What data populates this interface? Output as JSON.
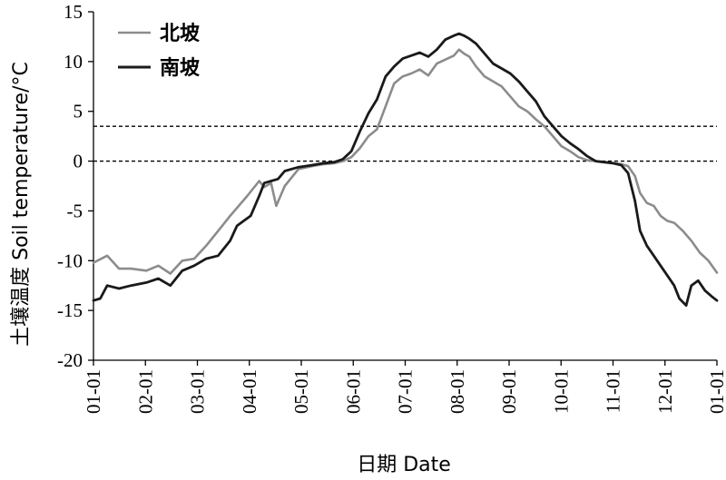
{
  "chart_data": {
    "type": "line",
    "xlabel": "日期 Date",
    "ylabel": "土壤温度 Soil temperature/°C",
    "ylim": [
      -20,
      15
    ],
    "yticks": [
      "15",
      "10",
      "5",
      "0",
      "-5",
      "-10",
      "-15",
      "-20"
    ],
    "xticks": [
      "01-01",
      "02-01",
      "03-01",
      "04-01",
      "05-01",
      "06-01",
      "07-01",
      "08-01",
      "09-01",
      "10-01",
      "11-01",
      "12-01",
      "01-01"
    ],
    "xlim": [
      0,
      365
    ],
    "reference_lines": [
      3.5,
      0
    ],
    "legend_position": "top-left",
    "series": [
      {
        "name": "北坡",
        "color": "#8c8c8c",
        "x": [
          0,
          8,
          15,
          22,
          31,
          38,
          45,
          52,
          59,
          66,
          73,
          80,
          90,
          97,
          100,
          104,
          107,
          112,
          120,
          128,
          135,
          141,
          146,
          151,
          156,
          161,
          166,
          171,
          176,
          181,
          186,
          191,
          196,
          201,
          206,
          211,
          214,
          217,
          220,
          224,
          229,
          234,
          239,
          244,
          249,
          254,
          259,
          264,
          269,
          274,
          279,
          284,
          289,
          294,
          299,
          304,
          309,
          313,
          317,
          320,
          324,
          328,
          332,
          336,
          340,
          345,
          350,
          355,
          360,
          365
        ],
        "y": [
          -10.2,
          -9.5,
          -10.8,
          -10.8,
          -11.0,
          -10.5,
          -11.3,
          -10.0,
          -9.8,
          -8.5,
          -7.0,
          -5.5,
          -3.5,
          -2.0,
          -2.6,
          -2.2,
          -4.5,
          -2.5,
          -0.8,
          -0.5,
          -0.3,
          -0.2,
          0.0,
          0.4,
          1.3,
          2.5,
          3.2,
          5.5,
          7.8,
          8.5,
          8.8,
          9.2,
          8.6,
          9.8,
          10.2,
          10.6,
          11.2,
          10.8,
          10.5,
          9.5,
          8.5,
          8.0,
          7.5,
          6.5,
          5.5,
          5.0,
          4.2,
          3.5,
          2.5,
          1.5,
          1.0,
          0.4,
          0.1,
          0.0,
          -0.1,
          -0.2,
          -0.3,
          -0.5,
          -1.5,
          -3.2,
          -4.2,
          -4.5,
          -5.5,
          -6.0,
          -6.2,
          -7.0,
          -8.0,
          -9.2,
          -10.0,
          -11.2
        ]
      },
      {
        "name": "南坡",
        "color": "#1a1a1a",
        "x": [
          0,
          4,
          8,
          15,
          22,
          31,
          38,
          45,
          52,
          59,
          66,
          73,
          80,
          84,
          88,
          92,
          97,
          100,
          104,
          108,
          112,
          120,
          128,
          135,
          141,
          146,
          151,
          156,
          161,
          166,
          171,
          176,
          181,
          186,
          191,
          196,
          201,
          206,
          211,
          214,
          217,
          220,
          224,
          229,
          234,
          239,
          244,
          249,
          254,
          259,
          264,
          269,
          274,
          279,
          284,
          289,
          294,
          299,
          304,
          309,
          313,
          317,
          320,
          324,
          328,
          332,
          336,
          340,
          343,
          347,
          350,
          354,
          358,
          362,
          365
        ],
        "y": [
          -14.0,
          -13.8,
          -12.5,
          -12.8,
          -12.5,
          -12.2,
          -11.8,
          -12.5,
          -11.0,
          -10.5,
          -9.8,
          -9.5,
          -8.0,
          -6.5,
          -6.0,
          -5.5,
          -3.5,
          -2.2,
          -2.0,
          -1.8,
          -1.0,
          -0.6,
          -0.4,
          -0.2,
          -0.1,
          0.2,
          1.0,
          3.0,
          4.8,
          6.2,
          8.5,
          9.5,
          10.3,
          10.6,
          10.9,
          10.5,
          11.2,
          12.2,
          12.6,
          12.8,
          12.6,
          12.3,
          11.8,
          10.8,
          9.8,
          9.3,
          8.8,
          8.0,
          7.0,
          6.0,
          4.5,
          3.5,
          2.5,
          1.8,
          1.2,
          0.5,
          0.0,
          -0.1,
          -0.2,
          -0.4,
          -1.2,
          -4.0,
          -7.0,
          -8.5,
          -9.5,
          -10.5,
          -11.5,
          -12.5,
          -13.8,
          -14.5,
          -12.5,
          -12.0,
          -13.0,
          -13.6,
          -14.0
        ]
      }
    ]
  }
}
